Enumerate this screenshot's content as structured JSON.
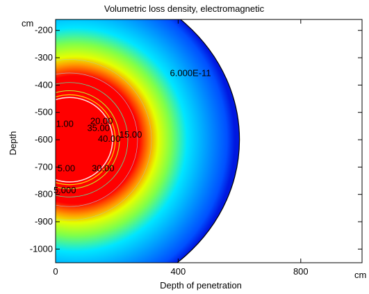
{
  "chart_data": {
    "type": "heatmap",
    "title": "Volumetric loss density, electromagnetic",
    "xlabel": "Depth of penetration",
    "ylabel": "Depth",
    "x_unit": "cm",
    "y_unit": "cm",
    "xlim": [
      0,
      1000
    ],
    "ylim": [
      -1050,
      -160
    ],
    "x_ticks": [
      0,
      400,
      800
    ],
    "y_ticks": [
      -200,
      -300,
      -400,
      -500,
      -600,
      -700,
      -800,
      -900,
      -1000
    ],
    "x_tick_labels": [
      "0",
      "400",
      "800"
    ],
    "y_tick_labels": [
      "-200",
      "-300",
      "-400",
      "-500",
      "-600",
      "-700",
      "-800",
      "-900",
      "-1000"
    ],
    "domain": {
      "shape": "half-disk",
      "center": [
        0,
        -600
      ],
      "radius": 600
    },
    "source": {
      "center": [
        0,
        -600
      ]
    },
    "colormap": "rainbow",
    "contour_labels": [
      {
        "text": "6.000E-11",
        "x": 440,
        "y": -355
      },
      {
        "text": "20.00",
        "x": 150,
        "y": -530
      },
      {
        "text": "1.00",
        "x": 30,
        "y": -540
      },
      {
        "text": "35.00",
        "x": 140,
        "y": -556
      },
      {
        "text": "15.00",
        "x": 245,
        "y": -580
      },
      {
        "text": "40.00",
        "x": 175,
        "y": -595
      },
      {
        "text": "5.00",
        "x": 35,
        "y": -703
      },
      {
        "text": "30.00",
        "x": 155,
        "y": -703
      },
      {
        "text": "5.000",
        "x": 30,
        "y": -783
      }
    ]
  }
}
